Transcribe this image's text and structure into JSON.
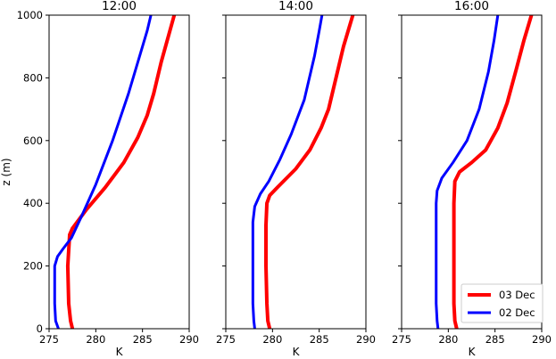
{
  "chart_data": {
    "type": "line",
    "ylabel": "z (m)",
    "ylim": [
      0,
      1000
    ],
    "y_ticks": [
      "0",
      "200",
      "400",
      "600",
      "800",
      "1000"
    ],
    "shared_y_axis": true,
    "grid": false,
    "legend": {
      "placement": "lower-right",
      "panel": 2,
      "entries": [
        "03 Dec",
        "02 Dec"
      ]
    },
    "colors": {
      "03 Dec": "#ff0000",
      "02 Dec": "#0000ff"
    },
    "panels": [
      {
        "title": "12:00",
        "xlabel": "K",
        "xlim": [
          275,
          290
        ],
        "x_ticks": [
          "275",
          "280",
          "285",
          "290"
        ],
        "series": [
          {
            "name": "03 Dec",
            "color": "#ff0000",
            "points": [
              [
                277.5,
                0
              ],
              [
                277.3,
                25
              ],
              [
                277.1,
                80
              ],
              [
                277.0,
                200
              ],
              [
                277.2,
                300
              ],
              [
                277.5,
                320
              ],
              [
                278.0,
                340
              ],
              [
                279.0,
                380
              ],
              [
                281.0,
                450
              ],
              [
                283.0,
                530
              ],
              [
                284.5,
                610
              ],
              [
                285.5,
                680
              ],
              [
                286.2,
                750
              ],
              [
                287.0,
                850
              ],
              [
                288.4,
                1000
              ]
            ]
          },
          {
            "name": "02 Dec",
            "color": "#0000ff",
            "points": [
              [
                276.0,
                0
              ],
              [
                275.7,
                25
              ],
              [
                275.6,
                80
              ],
              [
                275.6,
                200
              ],
              [
                275.9,
                230
              ],
              [
                276.5,
                255
              ],
              [
                277.4,
                290
              ],
              [
                278.5,
                360
              ],
              [
                280.0,
                460
              ],
              [
                281.8,
                600
              ],
              [
                283.5,
                750
              ],
              [
                285.0,
                900
              ],
              [
                285.5,
                950
              ],
              [
                285.9,
                1000
              ]
            ]
          }
        ]
      },
      {
        "title": "14:00",
        "xlabel": "K",
        "xlim": [
          275,
          290
        ],
        "x_ticks": [
          "275",
          "280",
          "285",
          "290"
        ],
        "series": [
          {
            "name": "03 Dec",
            "color": "#ff0000",
            "points": [
              [
                279.7,
                0
              ],
              [
                279.5,
                25
              ],
              [
                279.4,
                80
              ],
              [
                279.3,
                200
              ],
              [
                279.3,
                330
              ],
              [
                279.4,
                400
              ],
              [
                279.7,
                425
              ],
              [
                280.5,
                450
              ],
              [
                282.5,
                510
              ],
              [
                284.0,
                570
              ],
              [
                285.2,
                640
              ],
              [
                286.0,
                700
              ],
              [
                286.8,
                800
              ],
              [
                287.6,
                900
              ],
              [
                288.6,
                1000
              ]
            ]
          },
          {
            "name": "02 Dec",
            "color": "#0000ff",
            "points": [
              [
                278.1,
                0
              ],
              [
                278.0,
                25
              ],
              [
                277.9,
                80
              ],
              [
                277.9,
                200
              ],
              [
                277.9,
                340
              ],
              [
                278.1,
                390
              ],
              [
                278.7,
                430
              ],
              [
                279.6,
                470
              ],
              [
                280.8,
                540
              ],
              [
                282.0,
                620
              ],
              [
                283.4,
                730
              ],
              [
                284.5,
                870
              ],
              [
                285.0,
                950
              ],
              [
                285.3,
                1000
              ]
            ]
          }
        ]
      },
      {
        "title": "16:00",
        "xlabel": "K",
        "xlim": [
          275,
          290
        ],
        "x_ticks": [
          "275",
          "280",
          "285",
          "290"
        ],
        "series": [
          {
            "name": "03 Dec",
            "color": "#ff0000",
            "points": [
              [
                280.9,
                0
              ],
              [
                280.7,
                25
              ],
              [
                280.6,
                80
              ],
              [
                280.6,
                200
              ],
              [
                280.6,
                400
              ],
              [
                280.7,
                470
              ],
              [
                281.2,
                500
              ],
              [
                282.5,
                530
              ],
              [
                284.0,
                570
              ],
              [
                285.3,
                640
              ],
              [
                286.3,
                720
              ],
              [
                287.3,
                830
              ],
              [
                288.1,
                920
              ],
              [
                288.9,
                1000
              ]
            ]
          },
          {
            "name": "02 Dec",
            "color": "#0000ff",
            "points": [
              [
                278.9,
                0
              ],
              [
                278.8,
                25
              ],
              [
                278.7,
                80
              ],
              [
                278.7,
                200
              ],
              [
                278.7,
                400
              ],
              [
                278.8,
                440
              ],
              [
                279.3,
                480
              ],
              [
                280.5,
                530
              ],
              [
                282.0,
                600
              ],
              [
                283.3,
                700
              ],
              [
                284.3,
                820
              ],
              [
                284.9,
                920
              ],
              [
                285.3,
                1000
              ]
            ]
          }
        ]
      }
    ]
  }
}
